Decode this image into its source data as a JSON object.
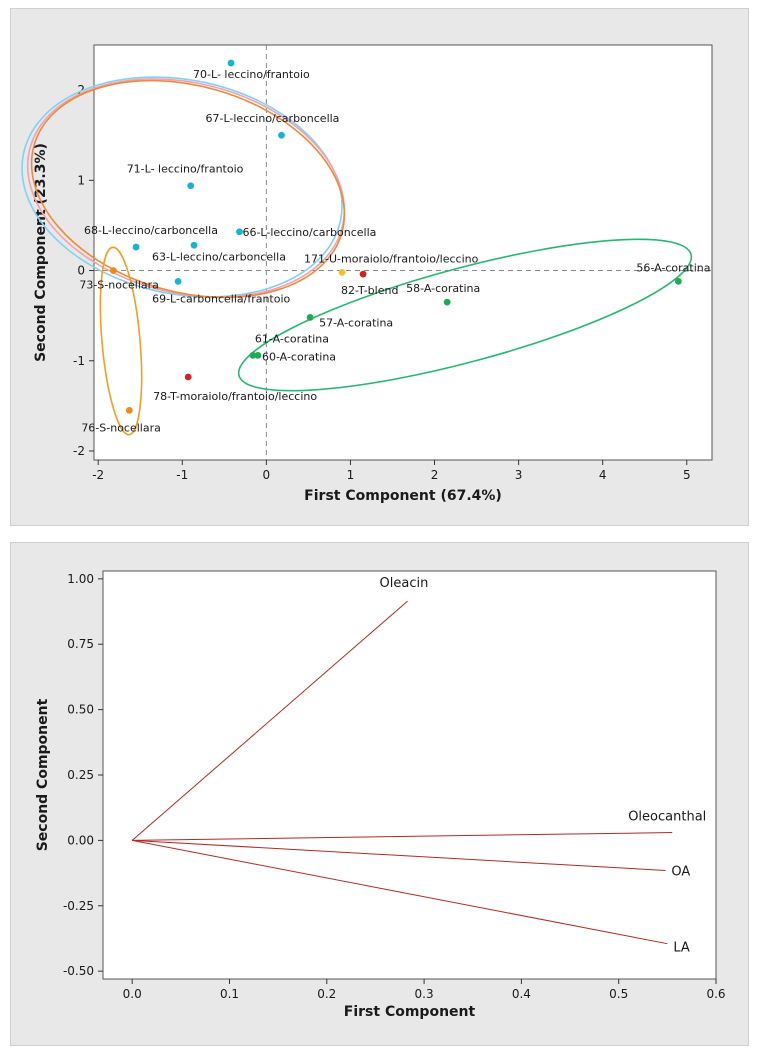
{
  "chart_data": [
    {
      "type": "scatter",
      "title": "",
      "xlabel": "First Component (67.4%)",
      "ylabel": "Second Component (23.3%)",
      "xlim": [
        -2.05,
        5.3
      ],
      "ylim": [
        -2.1,
        2.5
      ],
      "xticks": [
        -2,
        -1,
        0,
        1,
        2,
        3,
        4,
        5
      ],
      "yticks": [
        -2,
        -1,
        0,
        1,
        2
      ],
      "reference_lines": {
        "x": 0,
        "y": 0,
        "style": "dashed"
      },
      "colors": {
        "L": "#17b3d6",
        "A": "#1faa55",
        "S": "#ee8a1c",
        "T": "#d42020",
        "U": "#f2c12e",
        "ellipse_L_blue": "#7fd3f2",
        "ellipse_L_orange": "#f08a3a",
        "ellipse_L_pink": "#f4a0b0",
        "ellipse_A": "#25b870",
        "ellipse_S": "#f0a020"
      },
      "points": [
        {
          "label": "70-L- leccino/frantoio",
          "group": "L",
          "x": -0.42,
          "y": 2.3
        },
        {
          "label": "67-L-leccino/carboncella",
          "group": "L",
          "x": 0.18,
          "y": 1.5
        },
        {
          "label": "71-L- leccino/frantoio",
          "group": "L",
          "x": -0.9,
          "y": 0.94
        },
        {
          "label": "68-L-leccino/carboncella",
          "group": "L",
          "x": -1.55,
          "y": 0.26
        },
        {
          "label": "66-L-leccino/carboncella",
          "group": "L",
          "x": -0.32,
          "y": 0.43
        },
        {
          "label": "63-L-leccino/carboncella",
          "group": "L",
          "x": -0.86,
          "y": 0.28
        },
        {
          "label": "69-L-carboncella/frantoio",
          "group": "L",
          "x": -1.05,
          "y": -0.12
        },
        {
          "label": "171-U-moraiolo/frantoio/leccino",
          "group": "U",
          "x": 0.9,
          "y": -0.02
        },
        {
          "label": "82-T-blend",
          "group": "T",
          "x": 1.15,
          "y": -0.04
        },
        {
          "label": "78-T-moraiolo/frantoio/leccino",
          "group": "T",
          "x": -0.93,
          "y": -1.18
        },
        {
          "label": "73-S-nocellara",
          "group": "S",
          "x": -1.82,
          "y": 0.0
        },
        {
          "label": "76-S-nocellara",
          "group": "S",
          "x": -1.63,
          "y": -1.55
        },
        {
          "label": "56-A-coratina",
          "group": "A",
          "x": 4.9,
          "y": -0.12
        },
        {
          "label": "58-A-coratina",
          "group": "A",
          "x": 2.15,
          "y": -0.35
        },
        {
          "label": "57-A-coratina",
          "group": "A",
          "x": 0.52,
          "y": -0.52
        },
        {
          "label": "61-A-coratina",
          "group": "A",
          "x": -0.16,
          "y": -0.94
        },
        {
          "label": "60-A-coratina",
          "group": "A",
          "x": -0.1,
          "y": -0.94
        }
      ]
    },
    {
      "type": "line",
      "title": "",
      "xlabel": "First Component",
      "ylabel": "Second Component",
      "xlim": [
        -0.03,
        0.6
      ],
      "ylim": [
        -0.53,
        1.03
      ],
      "xticks": [
        "0.0",
        "0.1",
        "0.2",
        "0.3",
        "0.4",
        "0.5",
        "0.6"
      ],
      "yticks": [
        "1.00",
        "0.75",
        "0.50",
        "0.25",
        "0.00",
        "-0.25",
        "-0.50"
      ],
      "color": "#b52a22",
      "vectors": [
        {
          "label": "Oleacin",
          "x": 0.283,
          "y": 0.915
        },
        {
          "label": "Oleocanthal",
          "x": 0.555,
          "y": 0.03
        },
        {
          "label": "OA",
          "x": 0.548,
          "y": -0.115
        },
        {
          "label": "LA",
          "x": 0.55,
          "y": -0.395
        }
      ]
    }
  ]
}
